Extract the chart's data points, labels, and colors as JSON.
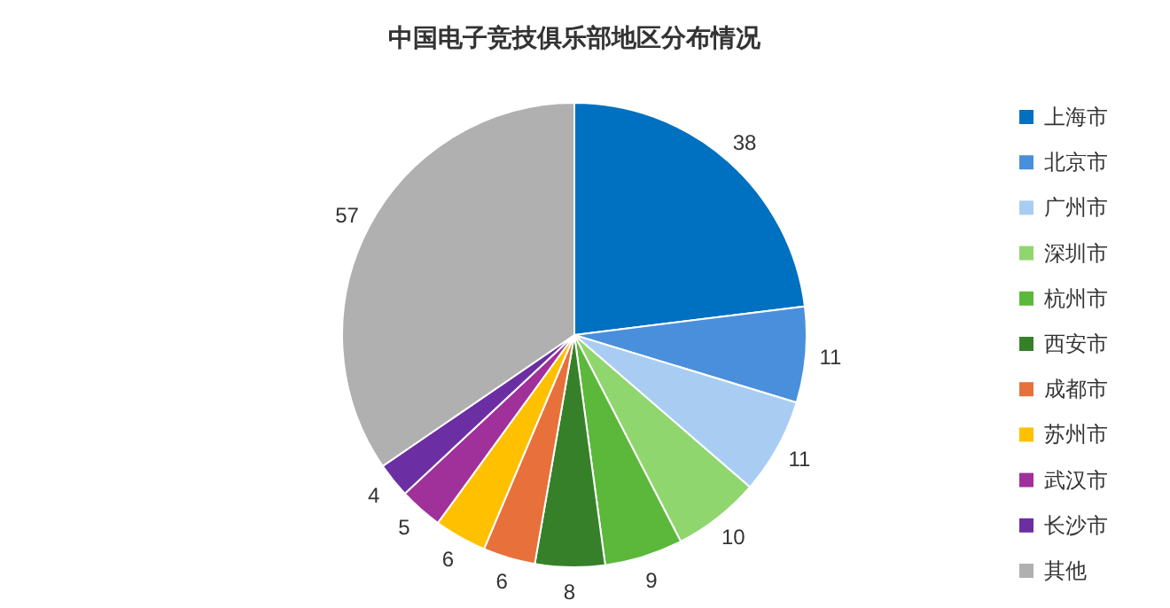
{
  "chart_data": {
    "type": "pie",
    "title": "中国电子竞技俱乐部地区分布情况",
    "categories": [
      "上海市",
      "北京市",
      "广州市",
      "深圳市",
      "杭州市",
      "西安市",
      "成都市",
      "苏州市",
      "武汉市",
      "长沙市",
      "其他"
    ],
    "values": [
      38,
      11,
      11,
      10,
      9,
      8,
      6,
      6,
      5,
      4,
      57
    ],
    "colors": [
      "#0070c0",
      "#4a8fdb",
      "#a9cdf2",
      "#90d66e",
      "#5cb83a",
      "#36802a",
      "#e8703a",
      "#ffc000",
      "#a0309a",
      "#6b2fa3",
      "#b0b0b0"
    ],
    "data_labels": true,
    "legend": "right"
  }
}
